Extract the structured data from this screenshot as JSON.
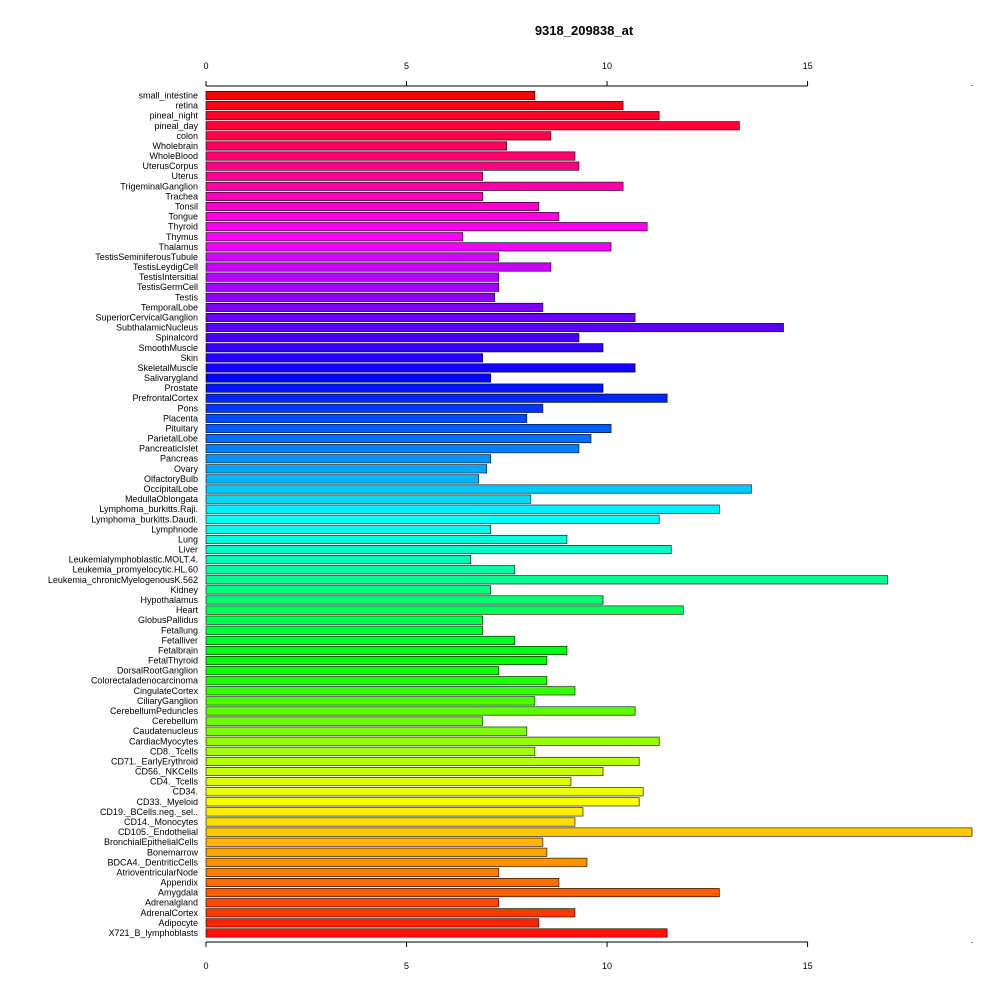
{
  "chart_data": {
    "type": "bar",
    "orientation": "horizontal",
    "title": "9318_209838_at",
    "xlabel": "",
    "ylabel": "",
    "xlim": [
      0,
      19.1
    ],
    "xticks": [
      0,
      5,
      10,
      15
    ],
    "grid": false,
    "legend": "none",
    "categories": [
      "small_intestine",
      "retina",
      "pineal_night",
      "pineal_day",
      "colon",
      "Wholebrain",
      "WholeBlood",
      "UterusCorpus",
      "Uterus",
      "TrigeminalGanglion",
      "Trachea",
      "Tonsil",
      "Tongue",
      "Thyroid",
      "Thymus",
      "Thalamus",
      "TestisSeminiferousTubule",
      "TestisLeydigCell",
      "TestisIntersitial",
      "TestisGermCell",
      "Testis",
      "TemporalLobe",
      "SuperiorCervicalGanglion",
      "SubthalamicNucleus",
      "Spinalcord",
      "SmoothMuscle",
      "Skin",
      "SkeletalMuscle",
      "Salivarygland",
      "Prostate",
      "PrefrontalCortex",
      "Pons",
      "Placenta",
      "Pituitary",
      "ParietalLobe",
      "PancreaticIslet",
      "Pancreas",
      "Ovary",
      "OlfactoryBulb",
      "OccipitalLobe",
      "MedullaOblongata",
      "Lymphoma_burkitts.Raji.",
      "Lymphoma_burkitts.Daudi.",
      "Lymphnode",
      "Lung",
      "Liver",
      "Leukemialymphoblastic.MOLT.4.",
      "Leukemia_promyelocytic.HL.60",
      "Leukemia_chronicMyelogenousK.562",
      "Kidney",
      "Hypothalamus",
      "Heart",
      "GlobusPallidus",
      "Fetallung",
      "Fetalliver",
      "Fetalbrain",
      "FetalThyroid",
      "DorsalRootGanglion",
      "Colorectaladenocarcinoma",
      "CingulateCortex",
      "CiliaryGanglion",
      "CerebellumPeduncles",
      "Cerebellum",
      "Caudatenucleus",
      "CardiacMyocytes",
      "CD8._Tcells",
      "CD71._EarlyErythroid",
      "CD56._NKCells",
      "CD4._Tcells",
      "CD34.",
      "CD33._Myeloid",
      "CD19._BCells.neg._sel..",
      "CD14._Monocytes",
      "CD105._Endothelial",
      "BronchialEpithelialCells",
      "Bonemarrow",
      "BDCA4._DentriticCells",
      "AtrioventricularNode",
      "Appendix",
      "Amygdala",
      "Adrenalgland",
      "AdrenalCortex",
      "Adipocyte",
      "X721_B_lymphoblasts"
    ],
    "values": [
      8.2,
      10.4,
      11.3,
      13.3,
      8.6,
      7.5,
      9.2,
      9.3,
      6.9,
      10.4,
      6.9,
      8.3,
      8.8,
      11.0,
      6.4,
      10.1,
      7.3,
      8.6,
      7.3,
      7.3,
      7.2,
      8.4,
      10.7,
      14.4,
      9.3,
      9.9,
      6.9,
      10.7,
      7.1,
      9.9,
      11.5,
      8.4,
      8.0,
      10.1,
      9.6,
      9.3,
      7.1,
      7.0,
      6.8,
      13.6,
      8.1,
      12.8,
      11.3,
      7.1,
      9.0,
      11.6,
      6.6,
      7.7,
      17.0,
      7.1,
      9.9,
      11.9,
      6.9,
      6.9,
      7.7,
      9.0,
      8.5,
      7.3,
      8.5,
      9.2,
      8.2,
      10.7,
      6.9,
      8.0,
      11.3,
      8.2,
      10.8,
      9.9,
      9.1,
      10.9,
      10.8,
      9.4,
      9.2,
      19.1,
      8.4,
      8.5,
      9.5,
      7.3,
      8.8,
      12.8,
      7.3,
      9.2,
      8.3,
      11.5
    ]
  }
}
